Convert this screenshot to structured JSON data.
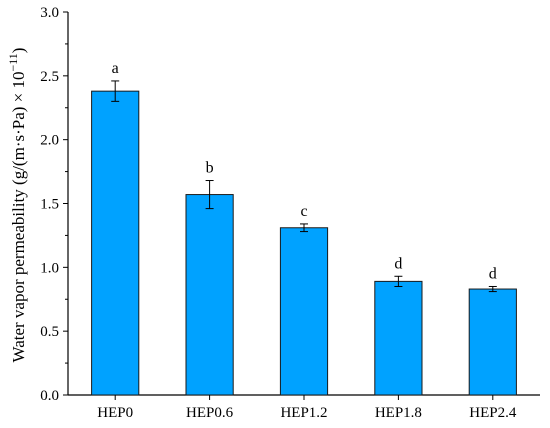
{
  "chart_data": {
    "type": "bar",
    "ylabel": "Water vapor permeability (g/(m·s·Pa) × 10",
    "ylabel_exponent": "−11",
    "ylabel_close": ")",
    "ylim": [
      0.0,
      3.0
    ],
    "yticks": [
      "0.0",
      "0.5",
      "1.0",
      "1.5",
      "2.0",
      "2.5",
      "3.0"
    ],
    "categories": [
      "HEP0",
      "HEP0.6",
      "HEP1.2",
      "HEP1.8",
      "HEP2.4"
    ],
    "values": [
      2.38,
      1.57,
      1.31,
      0.89,
      0.83
    ],
    "errors": [
      0.08,
      0.11,
      0.03,
      0.04,
      0.02
    ],
    "significance_labels": [
      "a",
      "b",
      "c",
      "d",
      "d"
    ],
    "bar_color": "#00a2ff",
    "grid": false
  }
}
